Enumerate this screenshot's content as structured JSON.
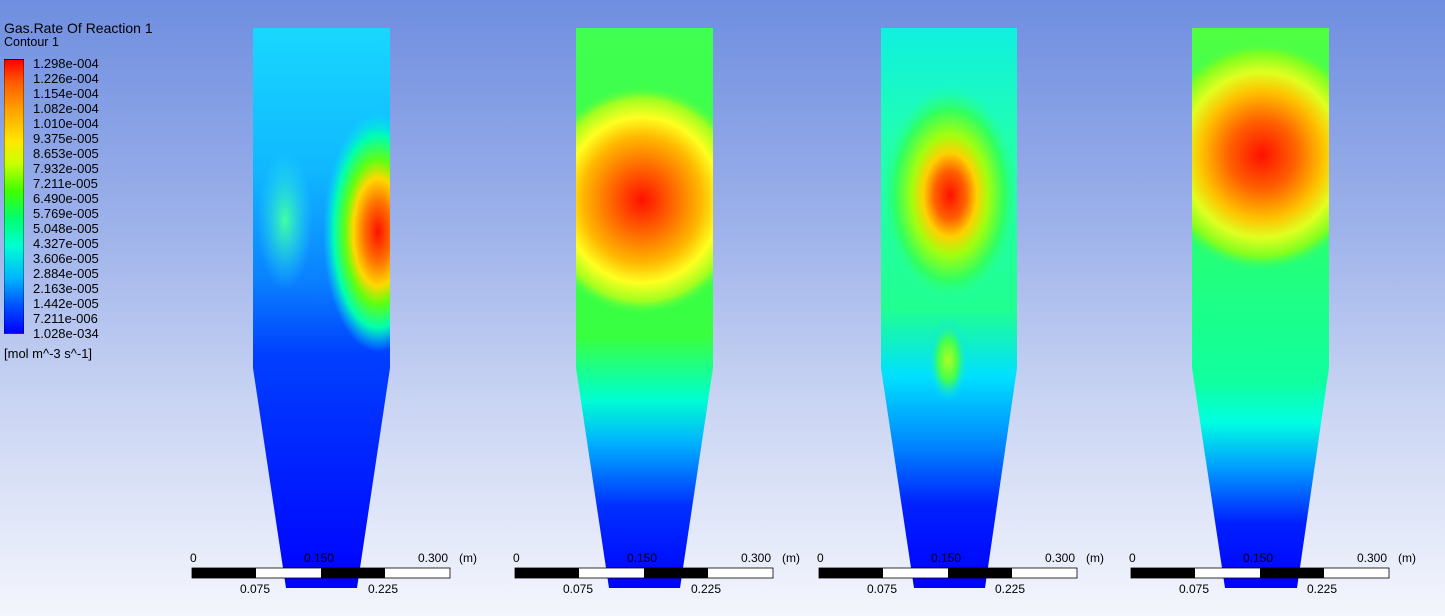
{
  "legend": {
    "variable": "Gas.Rate Of Reaction 1",
    "contour": "Contour 1",
    "levels": [
      "1.298e-004",
      "1.226e-004",
      "1.154e-004",
      "1.082e-004",
      "1.010e-004",
      "9.375e-005",
      "8.653e-005",
      "7.932e-005",
      "7.211e-005",
      "6.490e-005",
      "5.769e-005",
      "5.048e-005",
      "4.327e-005",
      "3.606e-005",
      "2.884e-005",
      "2.163e-005",
      "1.442e-005",
      "7.211e-006",
      "1.028e-034"
    ],
    "units": "[mol m^-3 s^-1]"
  },
  "scale": {
    "top_labels": [
      "0",
      "0.150",
      "0.300"
    ],
    "unit": "(m)",
    "bottom_labels": [
      "0.075",
      "0.225"
    ]
  },
  "panels": [
    {
      "hotspot_level": 1.0
    },
    {
      "hotspot_level": 1.0
    },
    {
      "hotspot_level": 1.0
    },
    {
      "hotspot_level": 1.0
    }
  ]
}
